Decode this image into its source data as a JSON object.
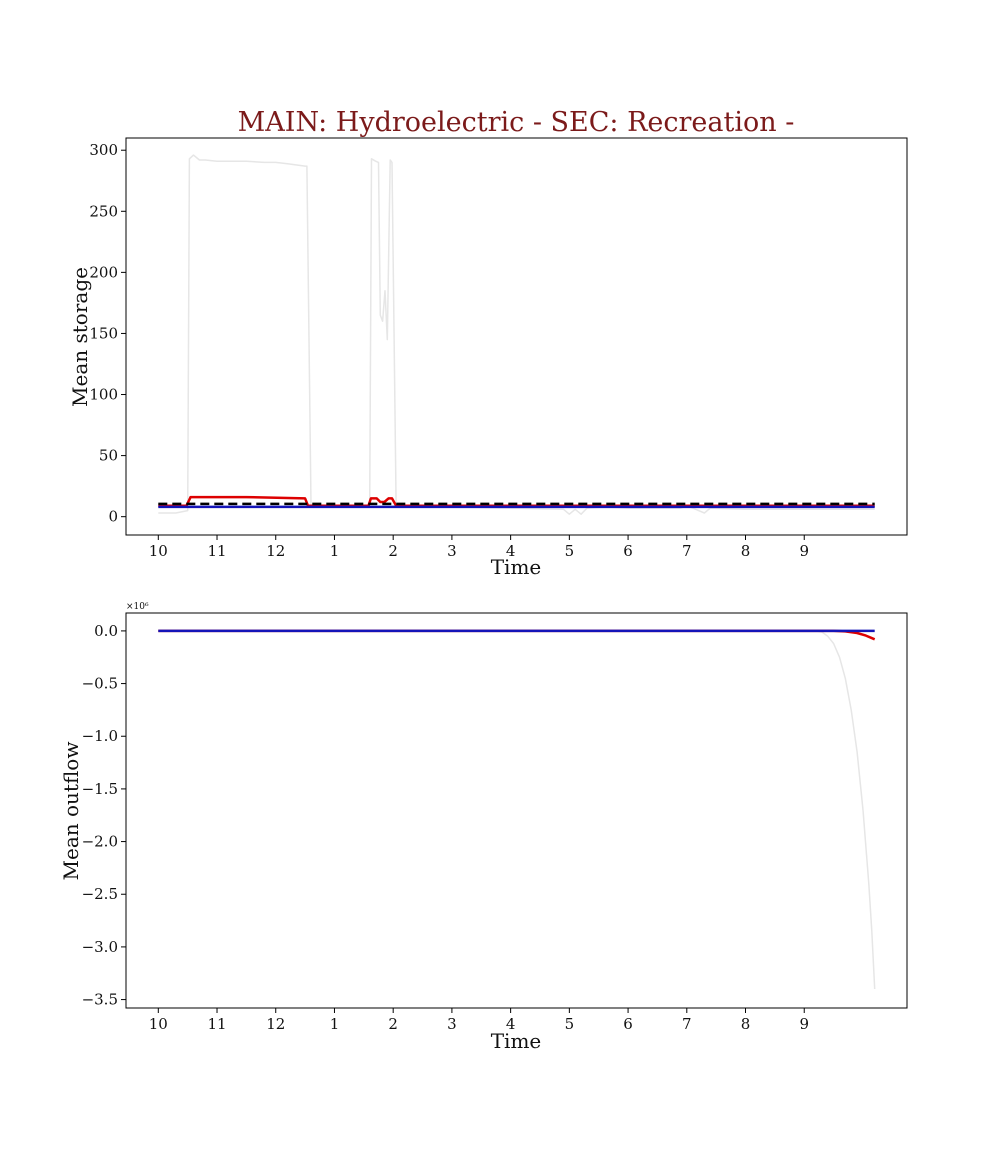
{
  "figure_title": "MAIN: Hydroelectric - SEC: Recreation -",
  "colors": {
    "title": "#7b1a1a",
    "red": "#dd0000",
    "blue": "#1414b8",
    "black": "#000000",
    "light_gray": "#e6e6e6"
  },
  "chart_data": [
    {
      "type": "line",
      "xlabel": "Time",
      "ylabel": "Mean storage",
      "xlim": [
        -0.55,
        12.75
      ],
      "ylim": [
        -15,
        310
      ],
      "x_ticks": [
        {
          "x": 0,
          "label": "10"
        },
        {
          "x": 1,
          "label": "11"
        },
        {
          "x": 2,
          "label": "12"
        },
        {
          "x": 3,
          "label": "1"
        },
        {
          "x": 4,
          "label": "2"
        },
        {
          "x": 5,
          "label": "3"
        },
        {
          "x": 6,
          "label": "4"
        },
        {
          "x": 7,
          "label": "5"
        },
        {
          "x": 8,
          "label": "6"
        },
        {
          "x": 9,
          "label": "7"
        },
        {
          "x": 10,
          "label": "8"
        },
        {
          "x": 11,
          "label": "9"
        }
      ],
      "y_ticks": [
        {
          "y": 0,
          "label": "0"
        },
        {
          "y": 50,
          "label": "50"
        },
        {
          "y": 100,
          "label": "100"
        },
        {
          "y": 150,
          "label": "150"
        },
        {
          "y": 200,
          "label": "200"
        },
        {
          "y": 250,
          "label": "250"
        },
        {
          "y": 300,
          "label": "300"
        }
      ],
      "series": [
        {
          "color": "#e6e6e6",
          "width": 1.5,
          "dash": "",
          "x": [
            0,
            0.3,
            0.5,
            0.53,
            0.6,
            0.7,
            0.8,
            1.0,
            1.5,
            1.8,
            2.0,
            2.2,
            2.5,
            2.53,
            2.6,
            3.0,
            3.5,
            3.6,
            3.63,
            3.7,
            3.75,
            3.78,
            3.82,
            3.86,
            3.9,
            3.95,
            3.98,
            4.05,
            4.1,
            4.5,
            5.0,
            6.0,
            6.9,
            7.0,
            7.1,
            7.2,
            7.3,
            7.6,
            8.0,
            8.9,
            9.0,
            9.1,
            9.3,
            9.4,
            10.0,
            10.5,
            11.0,
            12.2
          ],
          "y": [
            3,
            3,
            5,
            293,
            296,
            292,
            292,
            291,
            291,
            290,
            290,
            289,
            287,
            287,
            10,
            9,
            9,
            9,
            293,
            291,
            290,
            165,
            160,
            185,
            145,
            292,
            290,
            10,
            9,
            8,
            8,
            7,
            6,
            2,
            6,
            2,
            7,
            8,
            7,
            7,
            9,
            7,
            3,
            7,
            6,
            6,
            6,
            6
          ]
        },
        {
          "color": "#dd0000",
          "width": 2.5,
          "dash": "",
          "x": [
            0,
            0.48,
            0.55,
            1.5,
            2.5,
            2.55,
            3.5,
            3.58,
            3.62,
            3.72,
            3.78,
            3.85,
            3.92,
            3.98,
            4.05,
            12.2
          ],
          "y": [
            9,
            9,
            16,
            16,
            15,
            9,
            9,
            9,
            15,
            15,
            12,
            12,
            15,
            15,
            9,
            9
          ]
        },
        {
          "color": "#000000",
          "width": 2.5,
          "dash": "9,5",
          "x": [
            0,
            12.2
          ],
          "y": [
            10.5,
            10.5
          ]
        },
        {
          "color": "#1414b8",
          "width": 2.5,
          "dash": "",
          "x": [
            0,
            12.2
          ],
          "y": [
            8,
            8
          ]
        }
      ]
    },
    {
      "type": "line",
      "xlabel": "Time",
      "ylabel": "Mean outflow",
      "y_offset_label": "×10⁶",
      "xlim": [
        -0.55,
        12.75
      ],
      "ylim": [
        -3.58,
        0.17
      ],
      "x_ticks": [
        {
          "x": 0,
          "label": "10"
        },
        {
          "x": 1,
          "label": "11"
        },
        {
          "x": 2,
          "label": "12"
        },
        {
          "x": 3,
          "label": "1"
        },
        {
          "x": 4,
          "label": "2"
        },
        {
          "x": 5,
          "label": "3"
        },
        {
          "x": 6,
          "label": "4"
        },
        {
          "x": 7,
          "label": "5"
        },
        {
          "x": 8,
          "label": "6"
        },
        {
          "x": 9,
          "label": "7"
        },
        {
          "x": 10,
          "label": "8"
        },
        {
          "x": 11,
          "label": "9"
        }
      ],
      "y_ticks": [
        {
          "y": 0.0,
          "label": "0.0"
        },
        {
          "y": -0.5,
          "label": "−0.5"
        },
        {
          "y": -1.0,
          "label": "−1.0"
        },
        {
          "y": -1.5,
          "label": "−1.5"
        },
        {
          "y": -2.0,
          "label": "−2.0"
        },
        {
          "y": -2.5,
          "label": "−2.5"
        },
        {
          "y": -3.0,
          "label": "−3.0"
        },
        {
          "y": -3.5,
          "label": "−3.5"
        }
      ],
      "series": [
        {
          "color": "#e6e6e6",
          "width": 1.5,
          "dash": "",
          "x": [
            0,
            11.2,
            11.3,
            11.4,
            11.5,
            11.6,
            11.7,
            11.8,
            11.9,
            12.0,
            12.1,
            12.15,
            12.2
          ],
          "y": [
            0,
            0,
            -0.01,
            -0.05,
            -0.12,
            -0.25,
            -0.45,
            -0.75,
            -1.15,
            -1.7,
            -2.4,
            -2.85,
            -3.4
          ]
        },
        {
          "color": "#dd0000",
          "width": 2.5,
          "dash": "",
          "x": [
            0,
            11.5,
            11.7,
            11.9,
            12.05,
            12.2
          ],
          "y": [
            0,
            0,
            -0.005,
            -0.02,
            -0.045,
            -0.08
          ]
        },
        {
          "color": "#1414b8",
          "width": 2.5,
          "dash": "",
          "x": [
            0,
            12.2
          ],
          "y": [
            0,
            0
          ]
        }
      ]
    }
  ]
}
